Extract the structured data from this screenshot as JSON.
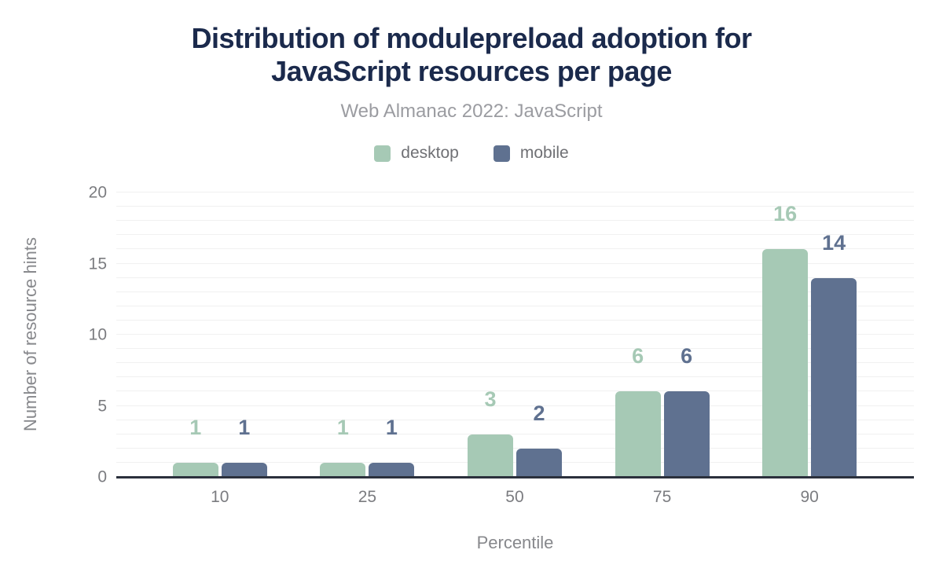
{
  "chart_data": {
    "type": "bar",
    "title": "Distribution of modulepreload adoption for JavaScript resources per page",
    "title_lines": [
      "Distribution of modulepreload adoption for",
      "JavaScript resources per page"
    ],
    "subtitle": "Web Almanac 2022: JavaScript",
    "categories": [
      "10",
      "25",
      "50",
      "75",
      "90"
    ],
    "series": [
      {
        "name": "desktop",
        "color": "#a6c9b5",
        "values": [
          1,
          1,
          3,
          6,
          16
        ]
      },
      {
        "name": "mobile",
        "color": "#5f7190",
        "values": [
          1,
          1,
          2,
          6,
          14
        ]
      }
    ],
    "xlabel": "Percentile",
    "ylabel": "Number of resource hints",
    "ylim": [
      0,
      20
    ],
    "yticks": [
      0,
      5,
      10,
      15,
      20
    ],
    "minor_grid_step": 1,
    "grid": "horizontal minor gridlines every 1 unit",
    "legend_position": "top",
    "data_labels": "above each bar, colored to match series"
  },
  "colors": {
    "title": "#1b2a4c",
    "subtitle": "#9b9ca1",
    "legend_text": "#6f7074",
    "axis_tick_text": "#7b7c80",
    "axis_title_text": "#87888c",
    "gridline": "#f1f1f1",
    "baseline": "#2b303c",
    "background": "#ffffff"
  }
}
